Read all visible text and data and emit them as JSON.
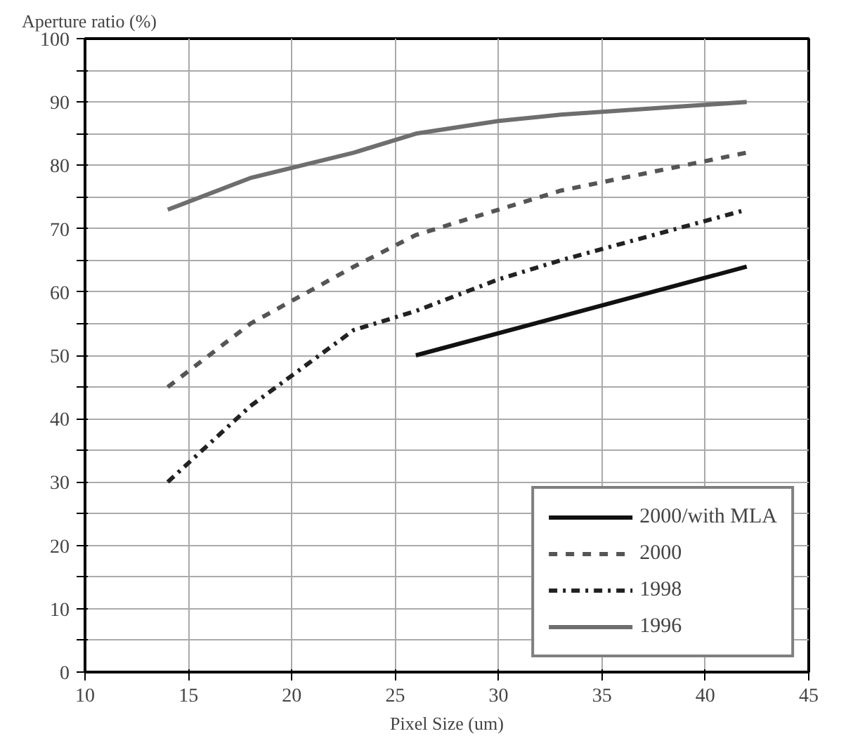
{
  "chart_data": {
    "type": "line",
    "ylabel": "Aperture ratio (%)",
    "xlabel": "Pixel Size (um)",
    "xlim": [
      10,
      45
    ],
    "xticks": [
      10,
      15,
      20,
      25,
      30,
      35,
      40,
      45
    ],
    "ylim": [
      0,
      100
    ],
    "yticks": [
      0,
      {
        "value": 5,
        "label": null
      },
      10,
      {
        "value": 15,
        "label": null
      },
      20,
      {
        "value": 25,
        "label": null
      },
      30,
      {
        "value": 35,
        "label": null
      },
      40,
      {
        "value": 45,
        "label": null
      },
      50,
      {
        "value": 55,
        "label": null
      },
      60,
      {
        "value": 65,
        "label": null
      },
      70,
      {
        "value": 75,
        "label": null
      },
      80,
      {
        "value": 85,
        "label": null
      },
      90,
      {
        "value": 95,
        "label": null
      },
      100
    ],
    "grid": true,
    "legend": "bottom right",
    "series": [
      {
        "name": "2000/with MLA",
        "color": "#111111",
        "line_style": "solid",
        "x": [
          26,
          42
        ],
        "values": [
          50,
          64
        ]
      },
      {
        "name": "2000",
        "color": "#555555",
        "line_style": "dashed",
        "x": [
          14,
          18,
          23,
          26,
          30,
          33,
          42
        ],
        "values": [
          45,
          55,
          64,
          69,
          73,
          76,
          82
        ]
      },
      {
        "name": "1998",
        "color": "#222222",
        "line_style": "dashdot",
        "x": [
          14,
          18,
          23,
          26,
          30,
          33,
          42
        ],
        "values": [
          30,
          42,
          54,
          57,
          62,
          65,
          73
        ]
      },
      {
        "name": "1996",
        "color": "#6e6e6e",
        "line_style": "solid",
        "x": [
          14,
          18,
          23,
          26,
          30,
          33,
          42
        ],
        "values": [
          73,
          78,
          82,
          85,
          87,
          88,
          90
        ]
      }
    ]
  }
}
